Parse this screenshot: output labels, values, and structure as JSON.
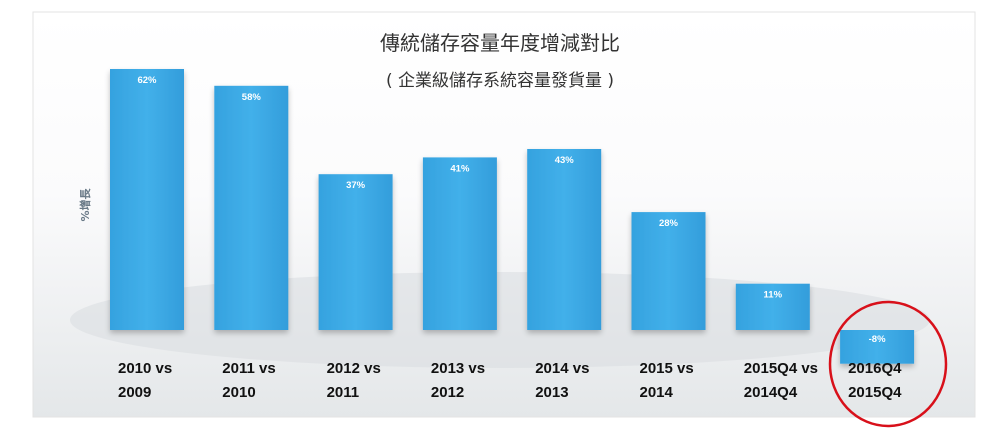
{
  "chart_data": {
    "type": "bar",
    "title": "傳統儲存容量年度增減對比",
    "subtitle": "( 企業級儲存系統容量發貨量 )",
    "ylabel": "%增長",
    "xlabel": "",
    "categories": [
      [
        "2010 vs",
        "2009"
      ],
      [
        "2011 vs",
        "2010"
      ],
      [
        "2012 vs",
        "2011"
      ],
      [
        "2013 vs",
        "2012"
      ],
      [
        "2014 vs",
        "2013"
      ],
      [
        "2015 vs",
        "2014"
      ],
      [
        "2015Q4 vs",
        "2014Q4"
      ],
      [
        "2016Q4",
        "2015Q4"
      ]
    ],
    "values": [
      62,
      58,
      37,
      41,
      43,
      28,
      11,
      -8
    ],
    "data_labels": [
      "62%",
      "58%",
      "37%",
      "41%",
      "43%",
      "28%",
      "11%",
      "-8%"
    ],
    "ylim": [
      -15,
      70
    ],
    "grid": false,
    "legend": "none",
    "highlighted_category_index": 7,
    "colors": {
      "bar": "#3ba8e4",
      "highlight_circle": "#d8101a",
      "background_top": "#ffffff",
      "background_bottom": "#e6e9eb"
    }
  }
}
